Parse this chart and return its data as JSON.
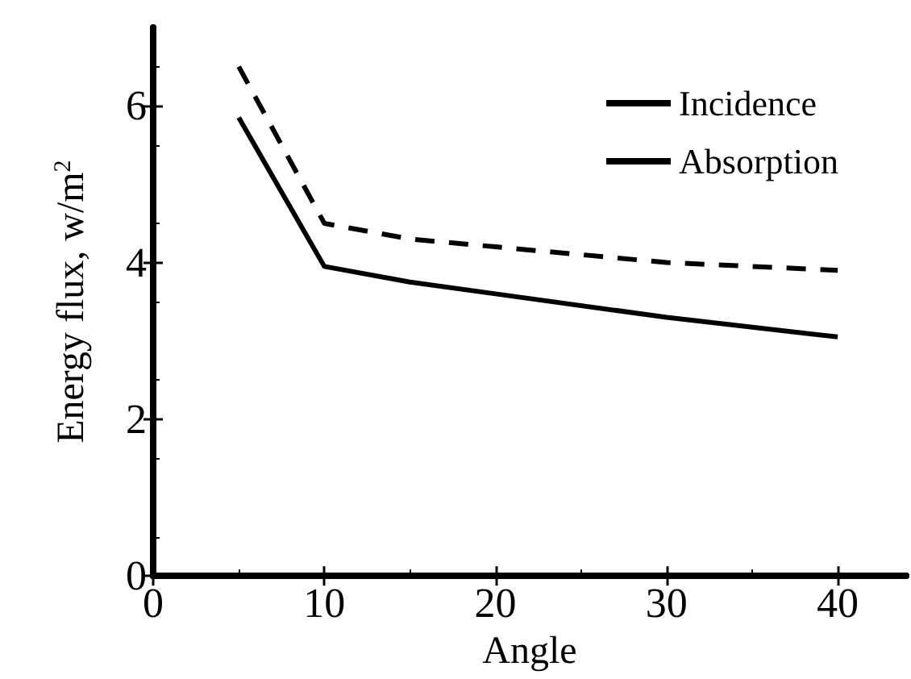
{
  "chart_data": {
    "type": "line",
    "xlabel": "Angle",
    "ylabel": "Energy flux, w/m$^{2}$",
    "xlim": [
      0,
      44
    ],
    "xticks": [
      0,
      10,
      20,
      30,
      40
    ],
    "ylim": [
      0,
      7
    ],
    "yticks": [
      0,
      2,
      4,
      6
    ],
    "legend": "top right",
    "grid": false,
    "marker": "none",
    "series": [
      {
        "name": "Incidence",
        "color": "#000000",
        "line_style": "dashed",
        "x": [
          5,
          10,
          15,
          20,
          25,
          30,
          40
        ],
        "values": [
          6.5,
          4.5,
          4.3,
          4.2,
          4.1,
          4.0,
          3.9
        ]
      },
      {
        "name": "Absorption",
        "color": "#000000",
        "line_style": "solid",
        "x": [
          5,
          10,
          15,
          20,
          30,
          40
        ],
        "values": [
          5.85,
          3.95,
          3.75,
          3.6,
          3.3,
          3.05
        ]
      }
    ]
  }
}
